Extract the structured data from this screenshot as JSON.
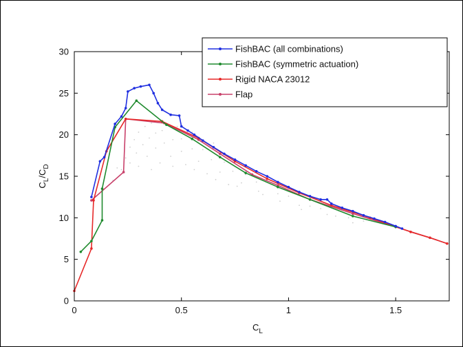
{
  "chart_data": {
    "type": "line",
    "title": "",
    "xlabel": {
      "main": "C",
      "sub": "L"
    },
    "ylabel": {
      "num_main": "C",
      "num_sub": "L",
      "sep": "/",
      "den_main": "C",
      "den_sub": "D"
    },
    "xlim": [
      0,
      1.75
    ],
    "ylim": [
      0,
      30
    ],
    "xticks": [
      0,
      0.5,
      1,
      1.5
    ],
    "xtick_labels": [
      "0",
      "0.5",
      "1",
      "1.5"
    ],
    "yticks": [
      0,
      5,
      10,
      15,
      20,
      25,
      30
    ],
    "ytick_labels": [
      "0",
      "5",
      "10",
      "15",
      "20",
      "25",
      "30"
    ],
    "grid": false,
    "legend_position": "top-right",
    "series": [
      {
        "name": "FishBAC (all combinations)",
        "color": "#1f2fe0",
        "points": [
          [
            0.08,
            12.5
          ],
          [
            0.12,
            16.8
          ],
          [
            0.14,
            17.3
          ],
          [
            0.19,
            21.3
          ],
          [
            0.22,
            22.2
          ],
          [
            0.24,
            23.2
          ],
          [
            0.25,
            25.2
          ],
          [
            0.28,
            25.6
          ],
          [
            0.31,
            25.8
          ],
          [
            0.35,
            26.0
          ],
          [
            0.37,
            25.0
          ],
          [
            0.39,
            23.8
          ],
          [
            0.41,
            23.0
          ],
          [
            0.45,
            22.4
          ],
          [
            0.49,
            22.3
          ],
          [
            0.5,
            21.0
          ],
          [
            0.53,
            20.5
          ],
          [
            0.56,
            20.0
          ],
          [
            0.6,
            19.3
          ],
          [
            0.65,
            18.5
          ],
          [
            0.7,
            17.7
          ],
          [
            0.75,
            17.0
          ],
          [
            0.8,
            16.3
          ],
          [
            0.85,
            15.6
          ],
          [
            0.9,
            15.0
          ],
          [
            0.95,
            14.3
          ],
          [
            1.0,
            13.7
          ],
          [
            1.05,
            13.1
          ],
          [
            1.1,
            12.6
          ],
          [
            1.15,
            12.2
          ],
          [
            1.18,
            12.2
          ],
          [
            1.2,
            11.7
          ],
          [
            1.25,
            11.2
          ],
          [
            1.3,
            10.8
          ],
          [
            1.35,
            10.3
          ],
          [
            1.4,
            9.9
          ],
          [
            1.45,
            9.5
          ],
          [
            1.5,
            9.0
          ],
          [
            1.53,
            8.7
          ]
        ]
      },
      {
        "name": "FishBAC (symmetric actuation)",
        "color": "#1f8a2e",
        "points": [
          [
            0.03,
            5.9
          ],
          [
            0.08,
            7.2
          ],
          [
            0.13,
            9.7
          ],
          [
            0.13,
            13.5
          ],
          [
            0.19,
            20.9
          ],
          [
            0.29,
            24.1
          ],
          [
            0.43,
            21.2
          ],
          [
            0.55,
            19.5
          ],
          [
            0.68,
            17.3
          ],
          [
            0.8,
            15.4
          ],
          [
            0.95,
            13.7
          ],
          [
            1.1,
            12.2
          ],
          [
            1.3,
            10.2
          ],
          [
            1.5,
            8.9
          ]
        ]
      },
      {
        "name": "Rigid NACA 23012",
        "color": "#e62828",
        "points": [
          [
            0.0,
            1.2
          ],
          [
            0.08,
            6.3
          ],
          [
            0.09,
            12.1
          ],
          [
            0.15,
            18.0
          ],
          [
            0.24,
            21.9
          ],
          [
            0.41,
            21.6
          ],
          [
            0.58,
            19.6
          ],
          [
            0.75,
            16.8
          ],
          [
            0.9,
            14.7
          ],
          [
            1.05,
            13.0
          ],
          [
            1.2,
            11.5
          ],
          [
            1.38,
            10.0
          ],
          [
            1.57,
            8.3
          ],
          [
            1.66,
            7.6
          ],
          [
            1.74,
            6.9
          ]
        ]
      },
      {
        "name": "Flap",
        "color": "#c8406a",
        "points": [
          [
            0.08,
            12.1
          ],
          [
            0.23,
            15.5
          ],
          [
            0.24,
            21.9
          ],
          [
            0.42,
            21.4
          ],
          [
            0.58,
            19.4
          ],
          [
            0.68,
            17.7
          ],
          [
            0.83,
            15.2
          ],
          [
            0.95,
            13.9
          ],
          [
            1.1,
            12.2
          ],
          [
            1.3,
            10.5
          ],
          [
            1.5,
            8.9
          ],
          [
            1.66,
            7.6
          ],
          [
            1.74,
            6.9
          ]
        ]
      }
    ],
    "background_points": [
      [
        0.22,
        15.8
      ],
      [
        0.24,
        17.2
      ],
      [
        0.26,
        18.5
      ],
      [
        0.28,
        19.4
      ],
      [
        0.3,
        20.3
      ],
      [
        0.33,
        21.0
      ],
      [
        0.36,
        21.4
      ],
      [
        0.26,
        16.6
      ],
      [
        0.29,
        17.8
      ],
      [
        0.32,
        18.8
      ],
      [
        0.35,
        19.6
      ],
      [
        0.38,
        20.2
      ],
      [
        0.41,
        20.5
      ],
      [
        0.3,
        16.2
      ],
      [
        0.34,
        17.4
      ],
      [
        0.38,
        18.4
      ],
      [
        0.42,
        19.0
      ],
      [
        0.46,
        19.4
      ],
      [
        0.5,
        19.5
      ],
      [
        0.4,
        16.6
      ],
      [
        0.45,
        17.4
      ],
      [
        0.5,
        18.0
      ],
      [
        0.55,
        18.3
      ],
      [
        0.6,
        18.2
      ],
      [
        0.52,
        16.4
      ],
      [
        0.58,
        16.8
      ],
      [
        0.64,
        17.0
      ],
      [
        0.7,
        16.7
      ],
      [
        0.62,
        15.3
      ],
      [
        0.68,
        15.5
      ],
      [
        0.74,
        15.6
      ],
      [
        0.8,
        15.2
      ],
      [
        0.72,
        14.0
      ],
      [
        0.78,
        14.2
      ],
      [
        0.85,
        14.3
      ],
      [
        0.88,
        12.8
      ],
      [
        0.95,
        12.9
      ],
      [
        1.0,
        12.6
      ],
      [
        1.05,
        11.5
      ],
      [
        1.1,
        11.4
      ],
      [
        1.15,
        11.1
      ],
      [
        1.22,
        10.2
      ],
      [
        1.28,
        10.0
      ],
      [
        1.35,
        9.6
      ],
      [
        0.48,
        21.0
      ],
      [
        0.55,
        20.3
      ],
      [
        0.65,
        19.0
      ],
      [
        0.18,
        14.5
      ],
      [
        0.2,
        16.0
      ],
      [
        0.36,
        15.8
      ],
      [
        0.46,
        16.2
      ],
      [
        0.56,
        15.8
      ],
      [
        0.66,
        14.6
      ],
      [
        0.76,
        13.8
      ],
      [
        0.86,
        13.2
      ],
      [
        0.96,
        12.0
      ],
      [
        1.06,
        11.0
      ],
      [
        1.18,
        10.4
      ],
      [
        1.3,
        9.4
      ]
    ],
    "background_color": "#cfcfcf"
  }
}
